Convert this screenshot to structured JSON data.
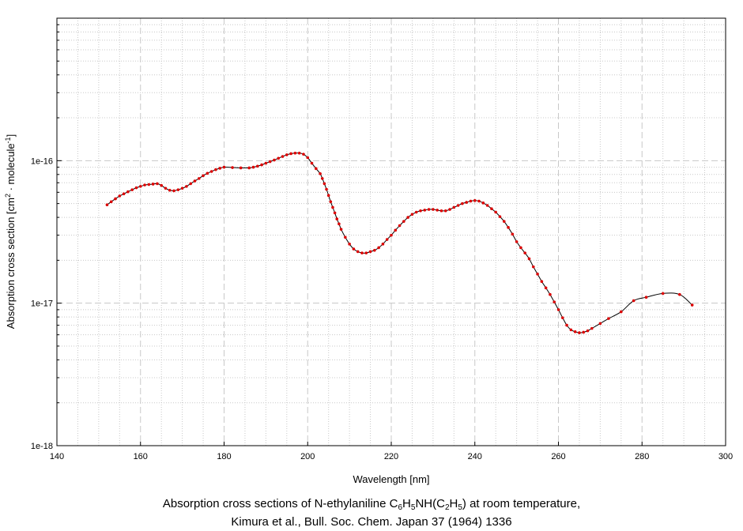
{
  "chart_data": {
    "type": "line",
    "xlabel": "Wavelength [nm]",
    "ylabel": "Absorption cross section [cm",
    "ylabel_sup1": "2",
    "ylabel_mid": " · molecule",
    "ylabel_sup2": "-1",
    "ylabel_end": "]",
    "xlim": [
      140,
      300
    ],
    "ylim": [
      1e-18,
      1e-15
    ],
    "yscale": "log",
    "x_ticks": [
      140,
      160,
      180,
      200,
      220,
      240,
      260,
      280,
      300
    ],
    "y_ticks": [
      {
        "value": 1e-18,
        "label": "1e-18"
      },
      {
        "value": 1e-17,
        "label": "1e-17"
      },
      {
        "value": 1e-16,
        "label": "1e-16"
      }
    ],
    "grid": true,
    "colors": {
      "line": "#000000",
      "marker": "#dd0000",
      "grid": "#c8c8c8"
    },
    "series": [
      {
        "x": [
          152,
          153,
          154,
          155,
          156,
          157,
          158,
          159,
          160,
          161,
          162,
          163,
          164,
          165,
          166,
          167,
          168,
          169,
          170,
          171,
          172,
          173,
          174,
          175,
          176,
          177,
          178,
          179,
          180,
          182,
          184,
          186,
          187,
          188,
          189,
          190,
          191,
          192,
          193,
          194,
          195,
          196,
          197,
          198,
          199,
          200,
          201,
          202,
          203,
          203.5,
          204,
          204.5,
          205,
          205.5,
          206,
          206.5,
          207,
          207.5,
          208,
          209,
          210,
          211,
          212,
          213,
          214,
          215,
          216,
          217,
          218,
          219,
          220,
          221,
          222,
          223,
          224,
          225,
          226,
          227,
          228,
          229,
          230,
          231,
          232,
          233,
          234,
          235,
          236,
          237,
          238,
          239,
          240,
          241,
          242,
          243,
          244,
          245,
          246,
          247,
          248,
          249,
          250,
          251,
          252,
          253,
          254,
          255,
          256,
          257,
          258,
          259,
          260,
          261,
          262,
          263,
          264,
          265,
          266,
          267,
          268,
          270,
          272,
          275,
          278,
          281,
          285,
          289,
          292
        ],
        "y": [
          4.9e-17,
          5.15e-17,
          5.4e-17,
          5.65e-17,
          5.85e-17,
          6.05e-17,
          6.25e-17,
          6.45e-17,
          6.6e-17,
          6.75e-17,
          6.8e-17,
          6.85e-17,
          6.9e-17,
          6.7e-17,
          6.4e-17,
          6.2e-17,
          6.15e-17,
          6.25e-17,
          6.4e-17,
          6.6e-17,
          6.9e-17,
          7.2e-17,
          7.5e-17,
          7.85e-17,
          8.15e-17,
          8.4e-17,
          8.65e-17,
          8.85e-17,
          9e-17,
          8.95e-17,
          8.9e-17,
          8.9e-17,
          9e-17,
          9.15e-17,
          9.35e-17,
          9.6e-17,
          9.85e-17,
          1.01e-16,
          1.04e-16,
          1.07e-16,
          1.1e-16,
          1.12e-16,
          1.13e-16,
          1.13e-16,
          1.11e-16,
          1.05e-16,
          9.6e-17,
          8.8e-17,
          8.1e-17,
          7.5e-17,
          6.9e-17,
          6.3e-17,
          5.7e-17,
          5.15e-17,
          4.7e-17,
          4.3e-17,
          3.9e-17,
          3.6e-17,
          3.3e-17,
          2.9e-17,
          2.6e-17,
          2.4e-17,
          2.3e-17,
          2.25e-17,
          2.25e-17,
          2.3e-17,
          2.35e-17,
          2.45e-17,
          2.6e-17,
          2.8e-17,
          3e-17,
          3.25e-17,
          3.5e-17,
          3.75e-17,
          4e-17,
          4.2e-17,
          4.35e-17,
          4.45e-17,
          4.5e-17,
          4.55e-17,
          4.55e-17,
          4.5e-17,
          4.45e-17,
          4.45e-17,
          4.55e-17,
          4.7e-17,
          4.85e-17,
          5e-17,
          5.1e-17,
          5.2e-17,
          5.25e-17,
          5.2e-17,
          5.05e-17,
          4.85e-17,
          4.6e-17,
          4.35e-17,
          4.05e-17,
          3.75e-17,
          3.4e-17,
          3.05e-17,
          2.7e-17,
          2.45e-17,
          2.25e-17,
          2.05e-17,
          1.8e-17,
          1.6e-17,
          1.42e-17,
          1.28e-17,
          1.15e-17,
          1.02e-17,
          9e-18,
          7.9e-18,
          7e-18,
          6.5e-18,
          6.3e-18,
          6.2e-18,
          6.25e-18,
          6.4e-18,
          6.65e-18,
          7.2e-18,
          7.8e-18,
          8.7e-18,
          1.04e-17,
          1.1e-17,
          1.17e-17,
          1.15e-17,
          9.7e-18
        ]
      }
    ]
  },
  "caption": {
    "line1_a": "Absorption cross sections of N-ethylaniline C",
    "sub1": "6",
    "line1_b": "H",
    "sub2": "5",
    "line1_c": "NH(C",
    "sub3": "2",
    "line1_d": "H",
    "sub4": "5",
    "line1_e": ") at room temperature,",
    "line2": "Kimura et al., Bull. Soc. Chem. Japan 37 (1964) 1336"
  }
}
